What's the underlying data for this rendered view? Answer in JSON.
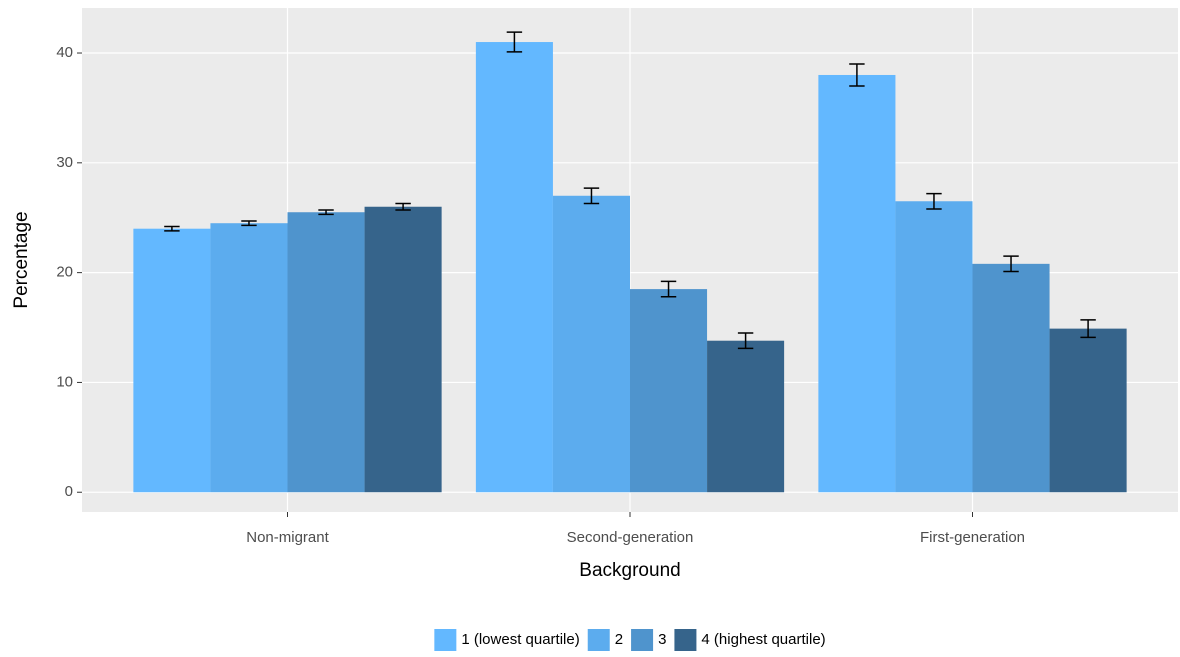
{
  "chart_data": {
    "type": "bar",
    "x_label": "Background",
    "y_label": "Percentage",
    "categories": [
      "Non-migrant",
      "Second-generation",
      "First-generation"
    ],
    "series": [
      {
        "name": "1 (lowest quartile)",
        "color": "#63b8ff",
        "values": [
          24,
          41,
          38
        ],
        "errors": [
          0.2,
          0.9,
          1.0
        ]
      },
      {
        "name": "2",
        "color": "#5cacee",
        "values": [
          24.5,
          27,
          26.5
        ],
        "errors": [
          0.2,
          0.7,
          0.7
        ]
      },
      {
        "name": "3",
        "color": "#4f94cd",
        "values": [
          25.5,
          18.5,
          20.8
        ],
        "errors": [
          0.2,
          0.7,
          0.7
        ]
      },
      {
        "name": "4 (highest quartile)",
        "color": "#36648b",
        "values": [
          26,
          13.8,
          14.9
        ],
        "errors": [
          0.3,
          0.7,
          0.8
        ]
      }
    ],
    "ylim": [
      -1.8,
      44.1
    ],
    "yticks": [
      0,
      10,
      20,
      30,
      40
    ],
    "grid": true,
    "legend": "bottom"
  }
}
